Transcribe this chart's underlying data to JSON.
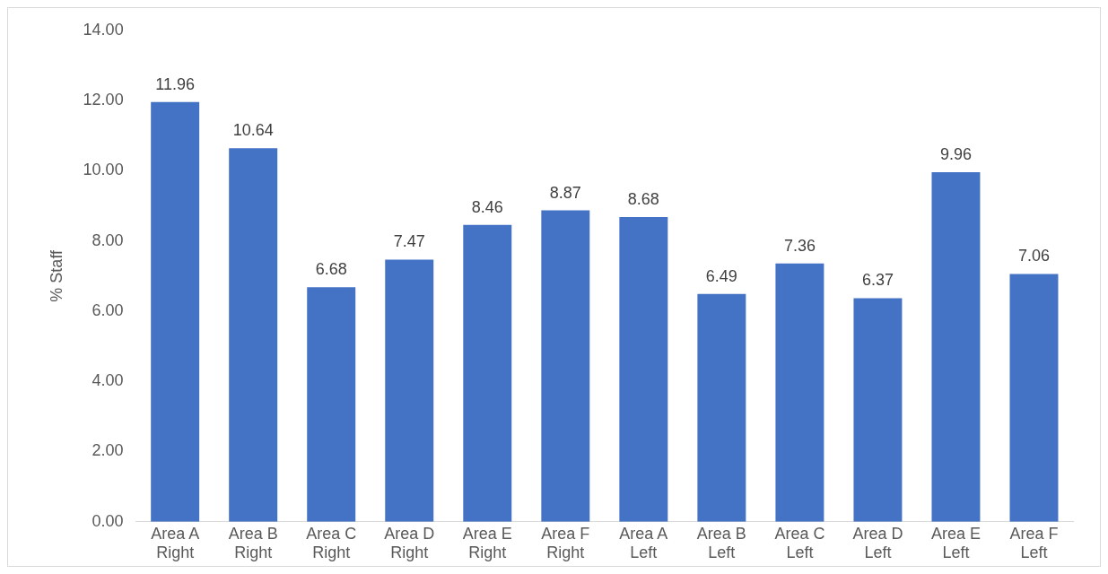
{
  "chart_data": {
    "type": "bar",
    "ylabel": "% Staff",
    "categories": [
      "Area A Right",
      "Area B Right",
      "Area C Right",
      "Area D Right",
      "Area E Right",
      "Area F Right",
      "Area A Left",
      "Area B Left",
      "Area C Left",
      "Area D Left",
      "Area E Left",
      "Area F Left"
    ],
    "values": [
      11.96,
      10.64,
      6.68,
      7.47,
      8.46,
      8.87,
      8.68,
      6.49,
      7.36,
      6.37,
      9.96,
      7.06
    ],
    "color": "#4472c4",
    "ylim": [
      0,
      14
    ],
    "yticks": [
      {
        "value": 0,
        "label": "0.00"
      },
      {
        "value": 2,
        "label": "2.00"
      },
      {
        "value": 4,
        "label": "4.00"
      },
      {
        "value": 6,
        "label": "6.00"
      },
      {
        "value": 8,
        "label": "8.00"
      },
      {
        "value": 10,
        "label": "10.00"
      },
      {
        "value": 12,
        "label": "12.00"
      },
      {
        "value": 14,
        "label": "14.00"
      }
    ],
    "data_labels": true,
    "grid": false,
    "legend": false
  }
}
